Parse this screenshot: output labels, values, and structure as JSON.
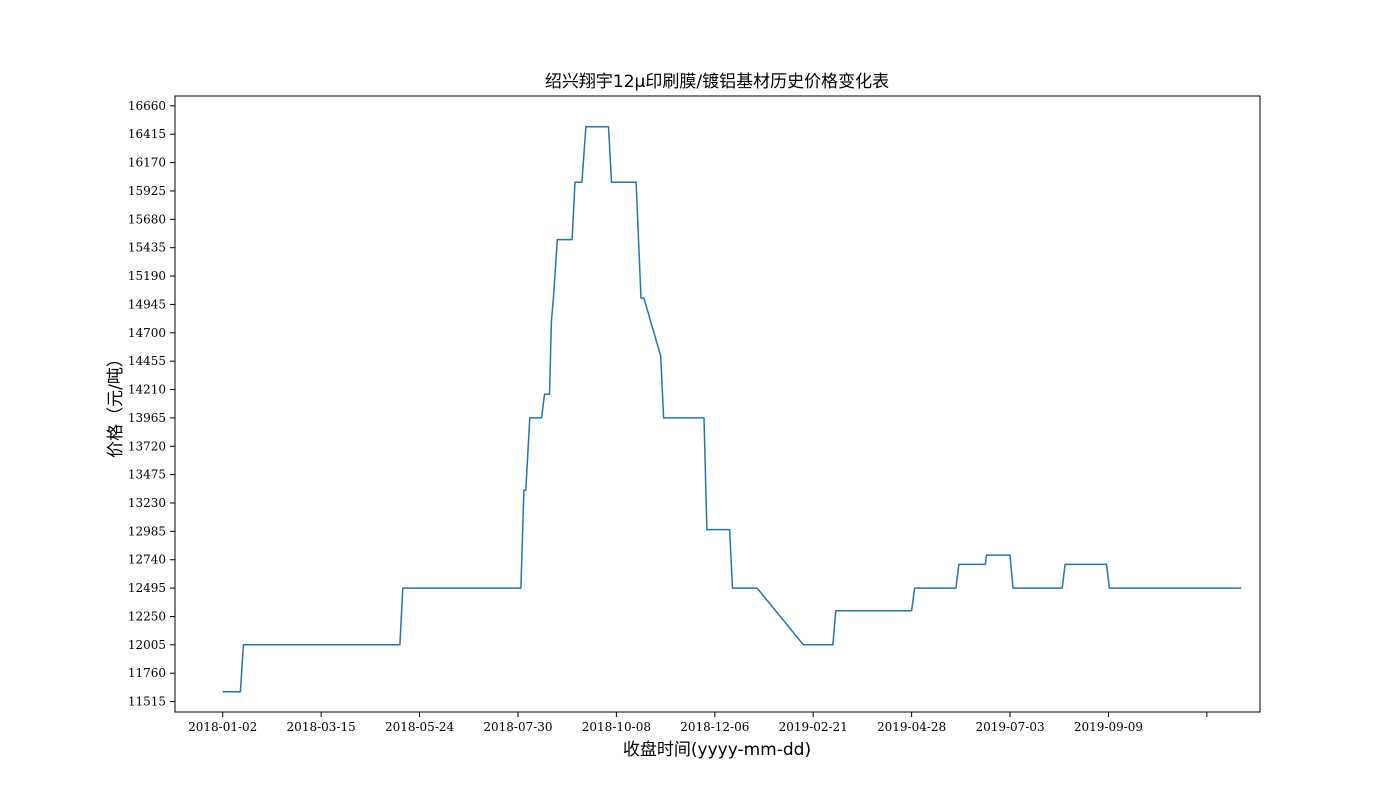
{
  "chart_data": {
    "type": "line",
    "title": "绍兴翔宇12μ印刷膜/镀铝基材历史价格变化表",
    "xlabel": "收盘时间(yyyy-mm-dd)",
    "ylabel": "价格（元/吨）",
    "x_tick_labels": [
      "2018-01-02",
      "2018-03-15",
      "2018-05-24",
      "2018-07-30",
      "2018-10-08",
      "2018-12-06",
      "2019-02-21",
      "2019-04-28",
      "2019-07-03",
      "2019-09-09",
      ""
    ],
    "y_ticks": [
      11515,
      11760,
      12005,
      12250,
      12495,
      12740,
      12985,
      13230,
      13475,
      13720,
      13965,
      14210,
      14455,
      14700,
      14945,
      15190,
      15435,
      15680,
      15925,
      16170,
      16415,
      16660
    ],
    "ylim": [
      11425,
      16745
    ],
    "xlim": [
      -9.7,
      210.8
    ],
    "grid": false,
    "legend": "none",
    "series_color": "#1f77b4",
    "series": [
      {
        "x": [
          0,
          3.6,
          4.2,
          36,
          36.6,
          60.6,
          61.2,
          61.6,
          62.4,
          64.8,
          65.4,
          66.4,
          66.8,
          67.2,
          68,
          71,
          71.6,
          73,
          73.8,
          78.4,
          79,
          84,
          85,
          85.6,
          89,
          89.6,
          90.6,
          92.6,
          93.2,
          97.8,
          98.4,
          98.8,
          103,
          103.6,
          108,
          108.6,
          118,
          118.6,
          124,
          124.6,
          140,
          140.6,
          149,
          149.6,
          155,
          155.2,
          155.6,
          160,
          160.6,
          170.6,
          171.2,
          179.6,
          180.2,
          195.6,
          196.2,
          207
        ],
        "y": [
          11600,
          11600,
          12005,
          12005,
          12495,
          12495,
          13340,
          13340,
          13965,
          13965,
          14170,
          14170,
          14800,
          15000,
          15505,
          15505,
          16000,
          16000,
          16480,
          16480,
          16000,
          16000,
          15000,
          15000,
          14500,
          13965,
          13965,
          13965,
          13965,
          13965,
          13000,
          13000,
          13000,
          12495,
          12495,
          12495,
          12005,
          12005,
          12005,
          12300,
          12300,
          12495,
          12495,
          12700,
          12700,
          12780,
          12780,
          12780,
          12495,
          12495,
          12700,
          12700,
          12495,
          12495,
          12495,
          12495
        ]
      }
    ]
  }
}
